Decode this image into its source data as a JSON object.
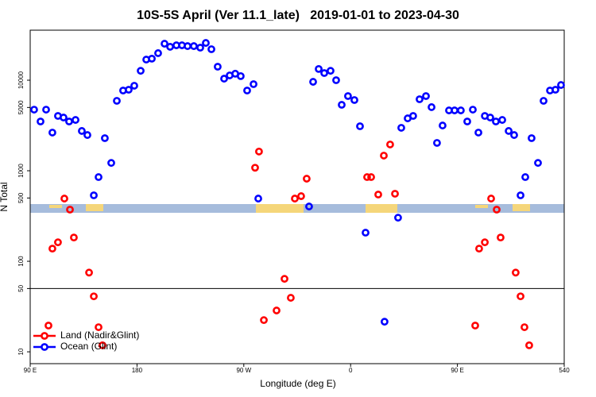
{
  "chart_data": {
    "type": "scatter",
    "title": "10S-5S April (Ver 11.1_late)   2019-01-01 to 2023-04-30",
    "x_label": "Longitude (deg E)",
    "y_label": "N Total",
    "log_y": true,
    "xlim": [
      90,
      540
    ],
    "ylim": [
      7.4,
      35700
    ],
    "xticks": [
      {
        "value": 90,
        "label": "90 E"
      },
      180,
      {
        "value": 270,
        "label": "90 W"
      },
      {
        "value": 360,
        "label": "0"
      },
      {
        "value": 450,
        "label": "90 E"
      },
      540
    ],
    "yticks": [
      10,
      50,
      100,
      500,
      1000,
      5000,
      10000
    ],
    "hline": 50,
    "legend": "lower left",
    "series": [
      {
        "name": "Land (Nadir&Glint)",
        "color": "#ff0000",
        "x": [
          105.4,
          108.7,
          113.4,
          118.8,
          123.5,
          126.8,
          139.6,
          143.6,
          147.6,
          150.9,
          279.5,
          282.8,
          286.9,
          297.6,
          304.3,
          309.6,
          313.0,
          318.3,
          323.0,
          373.9,
          377.3,
          383.3,
          388.0,
          393.3,
          397.4,
          465.0,
          468.3,
          473.1,
          478.4,
          483.1,
          486.4,
          499.1,
          503.2,
          506.5,
          510.5
        ],
        "values": [
          19.5,
          138,
          162,
          493,
          372,
          183,
          75,
          41,
          18.7,
          11.8,
          1080,
          1630,
          22.4,
          28.6,
          64,
          39.5,
          493,
          524,
          817,
          851,
          851,
          546,
          1470,
          1950,
          557,
          19.5,
          138,
          162,
          493,
          372,
          183,
          75,
          41,
          18.7,
          11.8
        ]
      },
      {
        "name": "Ocean (Glint)",
        "color": "#0000ff",
        "x": [
          93.3,
          98.7,
          103.4,
          108.7,
          113.4,
          118.1,
          122.8,
          128.2,
          133.5,
          138.2,
          143.6,
          147.6,
          152.9,
          158.3,
          163.0,
          168.3,
          173.0,
          177.7,
          183.1,
          187.8,
          192.5,
          197.8,
          203.2,
          207.9,
          213.2,
          217.9,
          222.6,
          227.9,
          233.3,
          238.0,
          242.7,
          248.0,
          253.4,
          258.1,
          262.8,
          267.4,
          272.8,
          278.2,
          282.2,
          325.0,
          328.4,
          333.1,
          337.8,
          343.1,
          347.8,
          352.5,
          357.8,
          363.2,
          367.9,
          372.6,
          388.6,
          400.0,
          402.7,
          408.1,
          412.7,
          418.1,
          423.5,
          428.2,
          432.8,
          437.5,
          442.9,
          447.6,
          452.9,
          458.3,
          463.0,
          467.7,
          473.1,
          477.7,
          482.4,
          487.8,
          493.2,
          497.8,
          503.2,
          507.2,
          512.5,
          517.9,
          522.6,
          528.0,
          532.6,
          537.3
        ],
        "values": [
          4730,
          3500,
          4730,
          2640,
          4030,
          3870,
          3500,
          3640,
          2750,
          2480,
          535,
          851,
          2290,
          1220,
          5920,
          7690,
          7850,
          8690,
          12700,
          16900,
          17300,
          19900,
          25300,
          23400,
          24300,
          24300,
          23800,
          23800,
          22900,
          25800,
          22000,
          14100,
          10400,
          11300,
          11800,
          11100,
          7690,
          9040,
          493,
          403,
          9600,
          13300,
          12000,
          12700,
          10000,
          5350,
          6680,
          6040,
          3100,
          207,
          21.5,
          303,
          2980,
          3790,
          4030,
          6160,
          6680,
          5040,
          2030,
          3160,
          4640,
          4640,
          4640,
          3500,
          4730,
          2640,
          4030,
          3870,
          3500,
          3640,
          2750,
          2480,
          535,
          851,
          2290,
          1220,
          5920,
          7690,
          7850,
          8850
        ]
      }
    ]
  }
}
